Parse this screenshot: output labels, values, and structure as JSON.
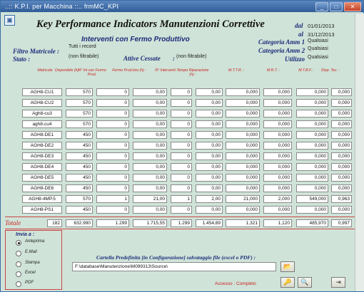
{
  "window": {
    "title": "..:: K.P.I. per Macchina ::.. frmMC_KPI"
  },
  "report": {
    "title": "Key Performance Indicators Manutenzioni Correttive",
    "subtitle": "Interventi con Fermo Produttivo"
  },
  "dates": {
    "dal_label": "dal",
    "dal_value": "01/01/2013",
    "al_label": "al",
    "al_value": "31/12/2013"
  },
  "filters": {
    "matricole_label": "Filtro Matricole :",
    "matricole_value": "Tutti i record",
    "matricole_note": "(non filtrabile)",
    "stato_label": "Stato :",
    "attive_label": "Attive Cessate",
    "attive_sep": ":",
    "attive_note": "(non filtrabile)",
    "cat1_label": "Categoria Amm 1",
    "cat1_value": "Qualsiasi",
    "cat2_label": "Categoria Amm 2",
    "cat2_value": "Qualsiasi",
    "utilizzo_label": "Utilizzo",
    "utilizzo_value": "Qualsiasi"
  },
  "columns": [
    "Matricola",
    "Disponibile (h) :",
    "N° Int con Fermo Prod.",
    "Fermo Prod.tivo (h) :",
    "N° Interventi :",
    "Tempo Riparazione (h) :",
    "M.T.T.R. :",
    "M.R.T. :",
    "M.T.B.F. :",
    "Disp. Tec. :"
  ],
  "rows": [
    [
      "AGH8-CU1",
      "570",
      "0",
      "0,00",
      "0",
      "0,00",
      "0,000",
      "0,000",
      "0,000",
      "0,000"
    ],
    [
      "AGH8-CU2",
      "570",
      "0",
      "0,00",
      "0",
      "0,00",
      "0,000",
      "0,000",
      "0,000",
      "0,000"
    ],
    [
      "Agh8-cu3",
      "570",
      "0",
      "0,00",
      "0",
      "0,00",
      "0,000",
      "0,000",
      "0,000",
      "0,000"
    ],
    [
      "agh8-cu4",
      "570",
      "0",
      "0,00",
      "0",
      "0,00",
      "0,000",
      "0,000",
      "0,000",
      "0,000"
    ],
    [
      "AGH8-DE1",
      "450",
      "0",
      "0,00",
      "0",
      "0,00",
      "0,000",
      "0,000",
      "0,000",
      "0,000"
    ],
    [
      "AGH8-DE2",
      "450",
      "0",
      "0,00",
      "0",
      "0,00",
      "0,000",
      "0,000",
      "0,000",
      "0,000"
    ],
    [
      "AGH8-DE3",
      "450",
      "0",
      "0,00",
      "0",
      "0,00",
      "0,000",
      "0,000",
      "0,000",
      "0,000"
    ],
    [
      "AGH8-DE4",
      "450",
      "0",
      "0,00",
      "0",
      "0,00",
      "0,000",
      "0,000",
      "0,000",
      "0,000"
    ],
    [
      "AGH8-DE5",
      "450",
      "0",
      "0,00",
      "0",
      "0,00",
      "0,000",
      "0,000",
      "0,000",
      "0,000"
    ],
    [
      "AGH8-DE6",
      "450",
      "0",
      "0,00",
      "0",
      "0,00",
      "0,000",
      "0,000",
      "0,000",
      "0,000"
    ],
    [
      "AGH8-4MP.5",
      "570",
      "1",
      "21,00",
      "1",
      "2,00",
      "21,000",
      "2,000",
      "549,000",
      "0,963"
    ],
    [
      "AGH8-PS1",
      "450",
      "0",
      "0,00",
      "0",
      "0,00",
      "0,000",
      "0,000",
      "0,000",
      "0,000"
    ]
  ],
  "totals": {
    "label": "Totale",
    "values": [
      "182",
      "632.990",
      "1.299",
      "1.715,55",
      "1.299",
      "1.454,89",
      "1,321",
      "1,120",
      "485,970",
      "0,997"
    ]
  },
  "invia": {
    "label": "Invia a :",
    "options": [
      "Anteprima",
      "E.Mail",
      "Stampa",
      "Excel",
      "PDF"
    ],
    "selected": "Anteprima"
  },
  "output": {
    "folder_label": "Cartella Predefinita [in Configurazione] salvataggio file (excel o PDF) :",
    "folder_path": "F:\\database\\Manutenzione\\M099313\\Source\\"
  },
  "status": {
    "accesso": "Accesso : Completo"
  },
  "icons": {
    "folder": "folder-open-icon",
    "help": "key-icon",
    "preview": "preview-icon",
    "exit": "exit-door-icon"
  }
}
